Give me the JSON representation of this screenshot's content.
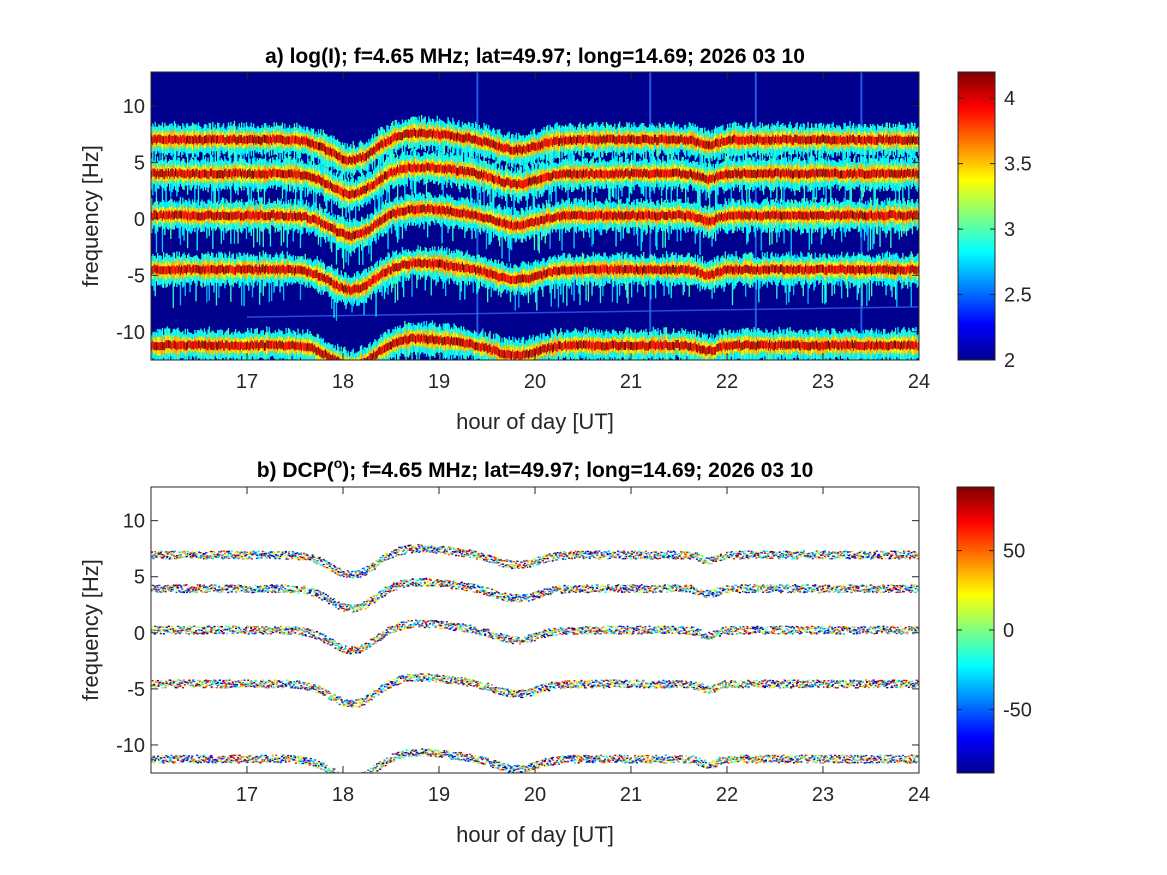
{
  "chart_data": [
    {
      "type": "heatmap",
      "title": "a) log(I); f=4.65 MHz;  lat=49.97; long=14.69; 2026 03 10",
      "xlabel": "hour of day [UT]",
      "ylabel": "frequency [Hz]",
      "xlim": [
        16,
        24
      ],
      "ylim": [
        -12.5,
        13
      ],
      "xticks": [
        "17",
        "18",
        "19",
        "20",
        "21",
        "22",
        "23",
        "24"
      ],
      "yticks": [
        "-10",
        "-5",
        "0",
        "5",
        "10"
      ],
      "colormap": "jet",
      "background_color": "#00008f",
      "colorbar": {
        "min": 2,
        "max": 4.2,
        "ticks": [
          "2",
          "2.5",
          "3",
          "3.5",
          "4"
        ]
      },
      "baselines_hz": [
        7.0,
        4.0,
        0.3,
        -4.5,
        -11.2
      ],
      "disturbances": [
        {
          "hour": 18.1,
          "depth_hz": 1.9,
          "width": 0.32
        },
        {
          "hour": 18.75,
          "depth_hz": -0.6,
          "width": 0.5
        },
        {
          "hour": 19.8,
          "depth_hz": 0.9,
          "width": 0.3
        },
        {
          "hour": 21.8,
          "depth_hz": 0.5,
          "width": 0.12
        }
      ],
      "vertical_streak_hours": [
        19.4,
        21.2,
        22.3,
        23.4
      ]
    },
    {
      "type": "scatter",
      "title": "b) DCP(°); f=4.65 MHz;  lat=49.97; long=14.69; 2026 03 10",
      "title_prefix": "b) DCP(",
      "title_superscript": "o",
      "title_suffix": "); f=4.65 MHz;  lat=49.97; long=14.69; 2026 03 10",
      "xlabel": "hour of day [UT]",
      "ylabel": "frequency [Hz]",
      "xlim": [
        16,
        24
      ],
      "ylim": [
        -12.5,
        13
      ],
      "xticks": [
        "17",
        "18",
        "19",
        "20",
        "21",
        "22",
        "23",
        "24"
      ],
      "yticks": [
        "-10",
        "-5",
        "0",
        "5",
        "10"
      ],
      "colormap": "jet",
      "colorbar": {
        "min": -90,
        "max": 90,
        "ticks": [
          "-50",
          "0",
          "50"
        ]
      },
      "baselines_hz": [
        7.0,
        4.0,
        0.3,
        -4.5,
        -11.2
      ]
    }
  ]
}
